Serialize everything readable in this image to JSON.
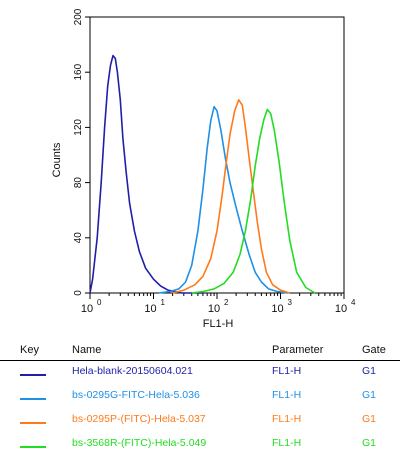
{
  "chart_data": {
    "type": "line",
    "xlabel": "FL1-H",
    "ylabel": "Counts",
    "x_scale": "log",
    "xlim": [
      1,
      10000
    ],
    "ylim": [
      0,
      200
    ],
    "y_ticks": [
      0,
      40,
      80,
      120,
      160,
      200
    ],
    "x_tick_bases": [
      "10",
      "10",
      "10",
      "10",
      "10"
    ],
    "x_tick_exps": [
      "0",
      "1",
      "2",
      "3",
      "4"
    ],
    "grid": false,
    "series": [
      {
        "name": "Hela-blank-20150604.021",
        "color": "#1f1fa8",
        "x": [
          1.0,
          1.1,
          1.3,
          1.5,
          1.7,
          1.9,
          2.1,
          2.3,
          2.5,
          2.7,
          3.0,
          3.3,
          3.7,
          4.2,
          5.0,
          6.0,
          7.5,
          10,
          13,
          17,
          22,
          28,
          35,
          45,
          60
        ],
        "y": [
          0,
          10,
          40,
          80,
          120,
          150,
          165,
          172,
          170,
          160,
          140,
          112,
          88,
          65,
          45,
          30,
          18,
          10,
          5,
          2,
          1,
          0,
          0,
          0,
          0
        ]
      },
      {
        "name": "bs-0295G-FITC-Hela-5.036",
        "color": "#1e90e6",
        "x": [
          12,
          18,
          25,
          32,
          40,
          50,
          60,
          70,
          80,
          90,
          100,
          115,
          135,
          160,
          200,
          250,
          320,
          400,
          500,
          650,
          900,
          1300
        ],
        "y": [
          0,
          1,
          3,
          8,
          20,
          45,
          75,
          105,
          125,
          135,
          132,
          118,
          98,
          80,
          62,
          45,
          28,
          15,
          8,
          3,
          1,
          0
        ]
      },
      {
        "name": "bs-0295P-(FITC)-Hela-5.037",
        "color": "#ff7a1a",
        "x": [
          20,
          30,
          45,
          60,
          80,
          100,
          120,
          140,
          160,
          190,
          220,
          250,
          280,
          320,
          370,
          430,
          500,
          600,
          750,
          1000,
          1400
        ],
        "y": [
          0,
          2,
          6,
          12,
          25,
          45,
          70,
          95,
          115,
          132,
          140,
          136,
          120,
          98,
          75,
          52,
          32,
          15,
          6,
          2,
          0
        ]
      },
      {
        "name": "bs-3568R-(FITC)-Hela-5.049",
        "color": "#22dd22",
        "x": [
          40,
          60,
          90,
          130,
          180,
          230,
          280,
          340,
          400,
          470,
          550,
          620,
          700,
          800,
          950,
          1150,
          1400,
          1800,
          2500,
          3500
        ],
        "y": [
          0,
          1,
          3,
          7,
          15,
          28,
          45,
          68,
          92,
          112,
          126,
          133,
          130,
          118,
          95,
          65,
          38,
          15,
          4,
          0
        ]
      }
    ]
  },
  "legend": {
    "headers": {
      "key": "Key",
      "name": "Name",
      "parameter": "Parameter",
      "gate": "Gate"
    },
    "rows": [
      {
        "name": "Hela-blank-20150604.021",
        "parameter": "FL1-H",
        "gate": "G1",
        "color": "#1f1fa8"
      },
      {
        "name": "bs-0295G-FITC-Hela-5.036",
        "parameter": "FL1-H",
        "gate": "G1",
        "color": "#1e90e6"
      },
      {
        "name": "bs-0295P-(FITC)-Hela-5.037",
        "parameter": "FL1-H",
        "gate": "G1",
        "color": "#ff7a1a"
      },
      {
        "name": "bs-3568R-(FITC)-Hela-5.049",
        "parameter": "FL1-H",
        "gate": "G1",
        "color": "#22dd22"
      }
    ]
  }
}
